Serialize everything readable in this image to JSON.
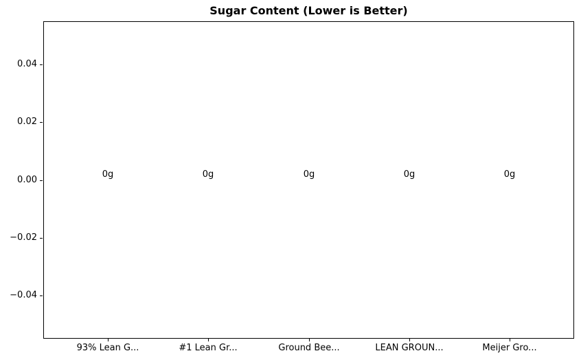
{
  "chart_data": {
    "type": "bar",
    "title": "Sugar Content (Lower is Better)",
    "categories": [
      "93% Lean G...",
      "#1 Lean Gr...",
      "Ground Bee...",
      "LEAN GROUN...",
      "Meijer Gro..."
    ],
    "values": [
      0,
      0,
      0,
      0,
      0
    ],
    "bar_labels": [
      "0g",
      "0g",
      "0g",
      "0g",
      "0g"
    ],
    "xlabel": "",
    "ylabel": "",
    "ytick_values": [
      0.04,
      0.02,
      0.0,
      -0.02,
      -0.04
    ],
    "ytick_labels": [
      "0.04",
      "0.02",
      "0.00",
      "−0.02",
      "−0.04"
    ],
    "ylim": [
      -0.055,
      0.055
    ],
    "xlim": [
      -0.64,
      4.64
    ],
    "grid": false,
    "legend": null,
    "colors": {
      "text": "#000000",
      "frame": "#000000",
      "background": "#ffffff"
    }
  }
}
